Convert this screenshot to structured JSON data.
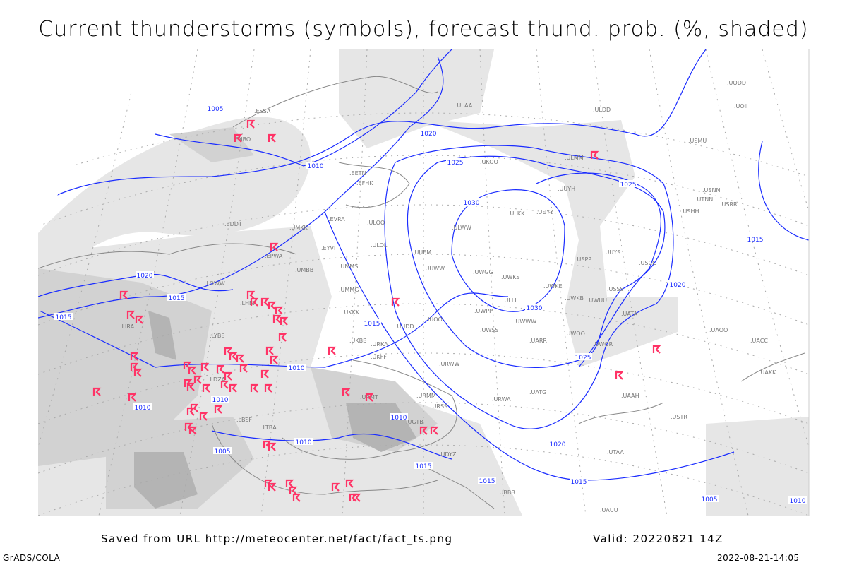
{
  "title": "Current thunderstorms (symbols), forecast thund. prob. (%, shaded)",
  "footer": {
    "source": "Saved from URL http://meteocenter.net/fact/fact_ts.png",
    "valid": "Valid: 20220821 14Z",
    "credit": "GrADS/COLA",
    "timestamp": "2022-08-21-14:05"
  },
  "isobar_color": "#1a2cff",
  "storm_symbol_color": "#ff3366",
  "shade_colors": [
    "#e6e6e6",
    "#d2d2d2",
    "#b4b4b4"
  ],
  "isobar_labels": [
    "1005",
    "1010",
    "1015",
    "1020",
    "1025",
    "1030"
  ],
  "stations": [
    "ULKK",
    "UUYY",
    "ULWW",
    "UWGG",
    "UWKS",
    "UWKE",
    "UWKB",
    "UWUU",
    "UWPP",
    "UWWW",
    "USPP",
    "UUYH",
    "ULLI",
    "UUEM",
    "UUWW",
    "UUOO",
    "UUDD",
    "UWOO",
    "UARR",
    "UWOR",
    "UATG",
    "URWA",
    "URWW",
    "UWSS",
    "UKKK",
    "UKBB",
    "UMMS",
    "UMMG",
    "UMBB",
    "EYVI",
    "EVRA",
    "EETN",
    "EFHK",
    "ULOO",
    "ULOL",
    "UMKK",
    "EPWA",
    "LHBP",
    "LYBE",
    "LBSF",
    "LTBA",
    "UBBB",
    "UDYZ",
    "UGTB",
    "URSS",
    "URMM",
    "URMT",
    "URKA",
    "UKFF",
    "UKOO",
    "ULAA",
    "ULMM",
    "UUYS",
    "USSS",
    "USCC",
    "USTR",
    "UAOO",
    "UACC",
    "UAKK",
    "UAAH",
    "UATA",
    "UAUU",
    "UTAA",
    "UTNN",
    "USRR",
    "USNN",
    "USHH",
    "USMU",
    "ULDD",
    "UODD",
    "UOII",
    "ENBO",
    "ESSA",
    "LOWW",
    "EDDT",
    "LIRA",
    "LDZA"
  ]
}
